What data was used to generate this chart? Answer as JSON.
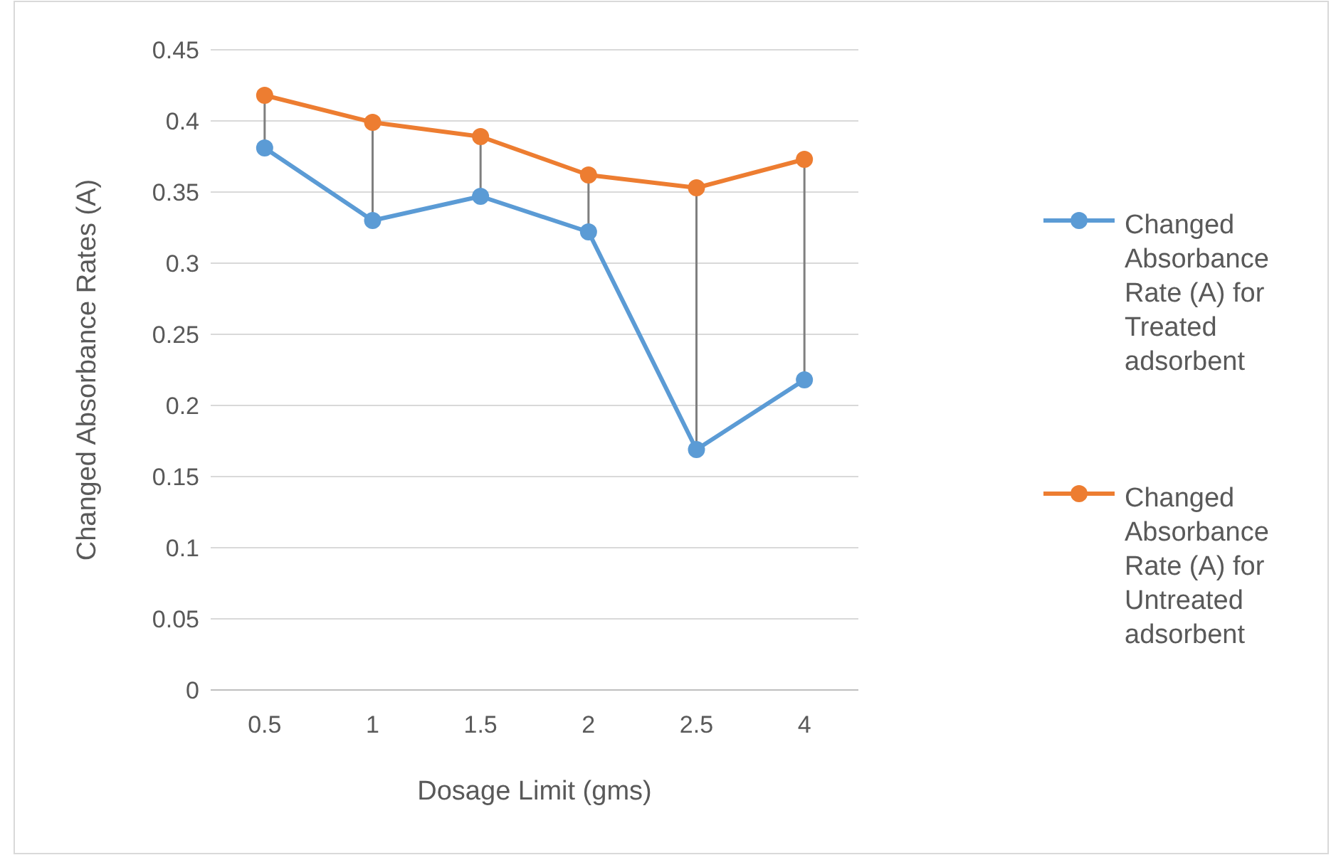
{
  "chart_data": {
    "type": "line",
    "xlabel": "Dosage Limit (gms)",
    "ylabel": "Changed Absorbance Rates (A)",
    "categories": [
      "0.5",
      "1",
      "1.5",
      "2",
      "2.5",
      "4"
    ],
    "series": [
      {
        "name": "Changed Absorbance Rate (A) for Treated adsorbent",
        "color": "#5b9bd5",
        "values": [
          0.381,
          0.33,
          0.347,
          0.322,
          0.169,
          0.218
        ]
      },
      {
        "name": "Changed Absorbance Rate (A) for Untreated adsorbent",
        "color": "#ed7d31",
        "values": [
          0.418,
          0.399,
          0.389,
          0.362,
          0.353,
          0.373
        ]
      }
    ],
    "ylim": [
      0,
      0.45
    ],
    "yticks": [
      0,
      0.05,
      0.1,
      0.15,
      0.2,
      0.25,
      0.3,
      0.35,
      0.4,
      0.45
    ],
    "grid": "y",
    "legend": "right",
    "marker": "circle",
    "line_style": "solid"
  }
}
